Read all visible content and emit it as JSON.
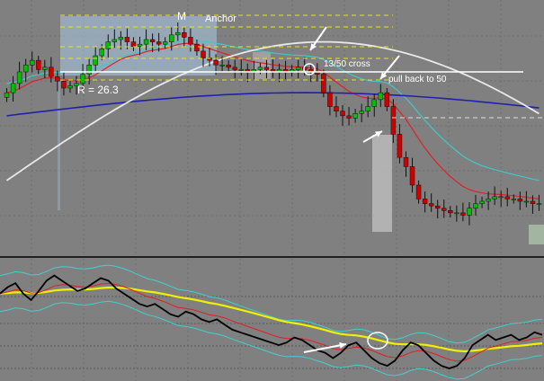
{
  "annotations": {
    "m": "M",
    "anchor": "Anchor",
    "range": "R = 26.3",
    "cross": "13/50 cross",
    "pullback": "pull back to 50"
  },
  "colors": {
    "background": "#808080",
    "up_candle": "#00c000",
    "down_candle": "#d00000",
    "ema13": "#e0202a",
    "ema50": "#40c8c8",
    "ema200_blue": "#2020b0",
    "sma_white": "#e8e8e8",
    "level_yellow": "#e8e800",
    "anchor_box": "#a8c8e0",
    "osc_line": "#000000",
    "osc_yellow": "#f0f000",
    "osc_band": "#40d0d0",
    "osc_red": "#e02020"
  },
  "chart_data": [
    {
      "type": "candlestick",
      "title": "",
      "note": "price panel; approximate close values per bar",
      "closes": [
        58,
        62,
        67,
        70,
        72,
        68,
        69,
        65,
        63,
        60,
        61,
        62,
        66,
        70,
        74,
        77,
        80,
        81,
        82,
        80,
        78,
        79,
        81,
        80,
        79,
        80,
        83,
        84,
        82,
        79,
        76,
        73,
        72,
        70,
        70,
        69,
        68,
        68,
        67,
        68,
        69,
        68,
        67,
        68,
        67,
        68,
        69,
        68,
        67,
        66,
        58,
        52,
        50,
        48,
        47,
        49,
        50,
        52,
        55,
        58,
        52,
        40,
        30,
        26,
        18,
        12,
        10,
        9,
        8,
        7,
        6,
        6,
        5,
        8,
        10,
        11,
        12,
        13,
        13,
        12,
        12,
        11,
        11,
        10,
        10
      ],
      "series": [
        {
          "name": "EMA 13",
          "color_key": "ema13"
        },
        {
          "name": "EMA 50",
          "color_key": "ema50"
        },
        {
          "name": "EMA 200",
          "color_key": "ema200_blue"
        },
        {
          "name": "SMA",
          "color_key": "sma_white"
        }
      ],
      "levels_yellow": [
        88,
        80,
        72,
        66
      ],
      "level_white": 60,
      "grid": true
    },
    {
      "type": "line",
      "title": "",
      "note": "oscillator panel",
      "values": [
        60,
        65,
        68,
        60,
        55,
        62,
        70,
        74,
        70,
        66,
        62,
        64,
        68,
        72,
        70,
        64,
        60,
        56,
        52,
        50,
        52,
        48,
        44,
        42,
        46,
        44,
        40,
        38,
        40,
        36,
        32,
        30,
        28,
        26,
        24,
        22,
        20,
        22,
        26,
        24,
        20,
        16,
        14,
        10,
        14,
        20,
        22,
        16,
        10,
        6,
        4,
        8,
        16,
        22,
        20,
        14,
        8,
        4,
        2,
        4,
        10,
        20,
        24,
        28,
        24,
        26,
        28,
        24,
        26,
        30,
        28
      ],
      "grid": true
    }
  ]
}
